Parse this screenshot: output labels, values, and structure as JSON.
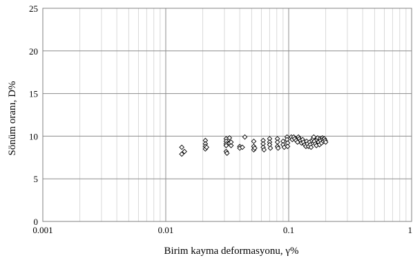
{
  "chart_data": {
    "type": "scatter",
    "xlabel": "Birim kayma deformasyonu, γ%",
    "ylabel": "Sönüm oranı, D%",
    "x_scale": "log",
    "xlim": [
      0.001,
      1
    ],
    "ylim": [
      0,
      25
    ],
    "x_ticks": [
      0.001,
      0.01,
      0.1,
      1
    ],
    "x_tick_labels": [
      "0.001",
      "0.01",
      "0.1",
      "1"
    ],
    "y_ticks": [
      0,
      5,
      10,
      15,
      20,
      25
    ],
    "y_tick_labels": [
      "0",
      "5",
      "10",
      "15",
      "20",
      "25"
    ],
    "grid": true,
    "marker": "diamond-open",
    "marker_color": "#000000",
    "series": [
      {
        "points": [
          [
            0.0135,
            8.7
          ],
          [
            0.0135,
            7.9
          ],
          [
            0.0142,
            8.2
          ],
          [
            0.021,
            9.5
          ],
          [
            0.021,
            9.1
          ],
          [
            0.021,
            8.8
          ],
          [
            0.021,
            8.5
          ],
          [
            0.0215,
            8.7
          ],
          [
            0.031,
            9.7
          ],
          [
            0.031,
            9.4
          ],
          [
            0.031,
            9.1
          ],
          [
            0.031,
            8.9
          ],
          [
            0.031,
            8.2
          ],
          [
            0.0315,
            8.0
          ],
          [
            0.033,
            9.8
          ],
          [
            0.033,
            9.2
          ],
          [
            0.034,
            8.9
          ],
          [
            0.034,
            9.3
          ],
          [
            0.04,
            8.8
          ],
          [
            0.04,
            8.6
          ],
          [
            0.042,
            8.7
          ],
          [
            0.044,
            9.9
          ],
          [
            0.052,
            9.4
          ],
          [
            0.052,
            8.8
          ],
          [
            0.052,
            8.4
          ],
          [
            0.053,
            8.6
          ],
          [
            0.062,
            9.5
          ],
          [
            0.062,
            9.1
          ],
          [
            0.062,
            8.7
          ],
          [
            0.063,
            8.4
          ],
          [
            0.07,
            9.7
          ],
          [
            0.07,
            9.3
          ],
          [
            0.07,
            9.0
          ],
          [
            0.071,
            8.6
          ],
          [
            0.081,
            9.7
          ],
          [
            0.081,
            9.3
          ],
          [
            0.081,
            8.8
          ],
          [
            0.082,
            8.6
          ],
          [
            0.09,
            9.4
          ],
          [
            0.09,
            9.0
          ],
          [
            0.092,
            8.7
          ],
          [
            0.097,
            9.9
          ],
          [
            0.097,
            9.6
          ],
          [
            0.098,
            9.2
          ],
          [
            0.098,
            8.8
          ],
          [
            0.105,
            9.9
          ],
          [
            0.107,
            9.6
          ],
          [
            0.11,
            9.9
          ],
          [
            0.112,
            9.7
          ],
          [
            0.115,
            9.5
          ],
          [
            0.118,
            9.3
          ],
          [
            0.12,
            9.9
          ],
          [
            0.122,
            9.7
          ],
          [
            0.125,
            9.5
          ],
          [
            0.127,
            9.2
          ],
          [
            0.13,
            9.6
          ],
          [
            0.132,
            9.3
          ],
          [
            0.135,
            9.0
          ],
          [
            0.138,
            8.8
          ],
          [
            0.14,
            9.4
          ],
          [
            0.142,
            9.1
          ],
          [
            0.145,
            8.8
          ],
          [
            0.148,
            9.3
          ],
          [
            0.15,
            9.0
          ],
          [
            0.152,
            8.7
          ],
          [
            0.155,
            9.5
          ],
          [
            0.158,
            9.7
          ],
          [
            0.16,
            9.9
          ],
          [
            0.162,
            9.4
          ],
          [
            0.165,
            9.1
          ],
          [
            0.168,
            8.9
          ],
          [
            0.17,
            9.6
          ],
          [
            0.172,
            9.8
          ],
          [
            0.175,
            9.3
          ],
          [
            0.178,
            9.0
          ],
          [
            0.18,
            9.7
          ],
          [
            0.182,
            9.5
          ],
          [
            0.185,
            9.2
          ],
          [
            0.188,
            9.8
          ],
          [
            0.19,
            9.6
          ],
          [
            0.192,
            9.4
          ],
          [
            0.195,
            9.7
          ],
          [
            0.198,
            9.5
          ],
          [
            0.2,
            9.3
          ]
        ]
      }
    ]
  }
}
